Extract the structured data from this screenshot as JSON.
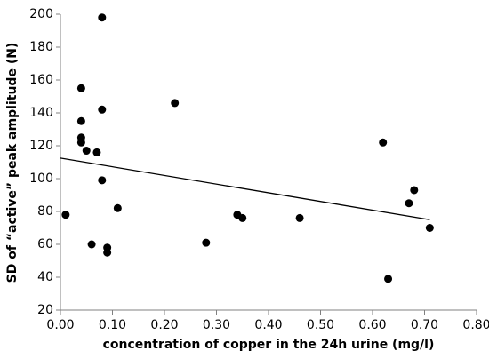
{
  "chart_data": {
    "type": "scatter",
    "xlabel": "concentration of copper in the 24h urine (mg/l)",
    "ylabel": "SD of “active” peak amplitude (N)",
    "x": [
      0.01,
      0.04,
      0.04,
      0.04,
      0.04,
      0.05,
      0.07,
      0.08,
      0.08,
      0.08,
      0.06,
      0.09,
      0.09,
      0.11,
      0.22,
      0.28,
      0.34,
      0.35,
      0.46,
      0.62,
      0.63,
      0.67,
      0.68,
      0.71
    ],
    "values": [
      78,
      155,
      135,
      125,
      122,
      117,
      116,
      198,
      142,
      99,
      60,
      58,
      55,
      82,
      146,
      61,
      78,
      76,
      76,
      122,
      39,
      85,
      93,
      70
    ],
    "color": "#000000",
    "trendline": {
      "x": [
        0,
        0.71
      ],
      "y": [
        112.5,
        75
      ]
    },
    "xlim": [
      0,
      0.8
    ],
    "xticks": [
      {
        "value": 0,
        "label": "0.00"
      },
      {
        "value": 0.1,
        "label": "0.10"
      },
      {
        "value": 0.2,
        "label": "0.20"
      },
      {
        "value": 0.3,
        "label": "0.30"
      },
      {
        "value": 0.4,
        "label": "0.40"
      },
      {
        "value": 0.5,
        "label": "0.50"
      },
      {
        "value": 0.6,
        "label": "0.60"
      },
      {
        "value": 0.7,
        "label": "0.70"
      },
      {
        "value": 0.8,
        "label": "0.80"
      }
    ],
    "ylim": [
      20,
      200
    ],
    "yticks": [
      20,
      40,
      60,
      80,
      100,
      120,
      140,
      160,
      180,
      200
    ],
    "grid": false
  }
}
